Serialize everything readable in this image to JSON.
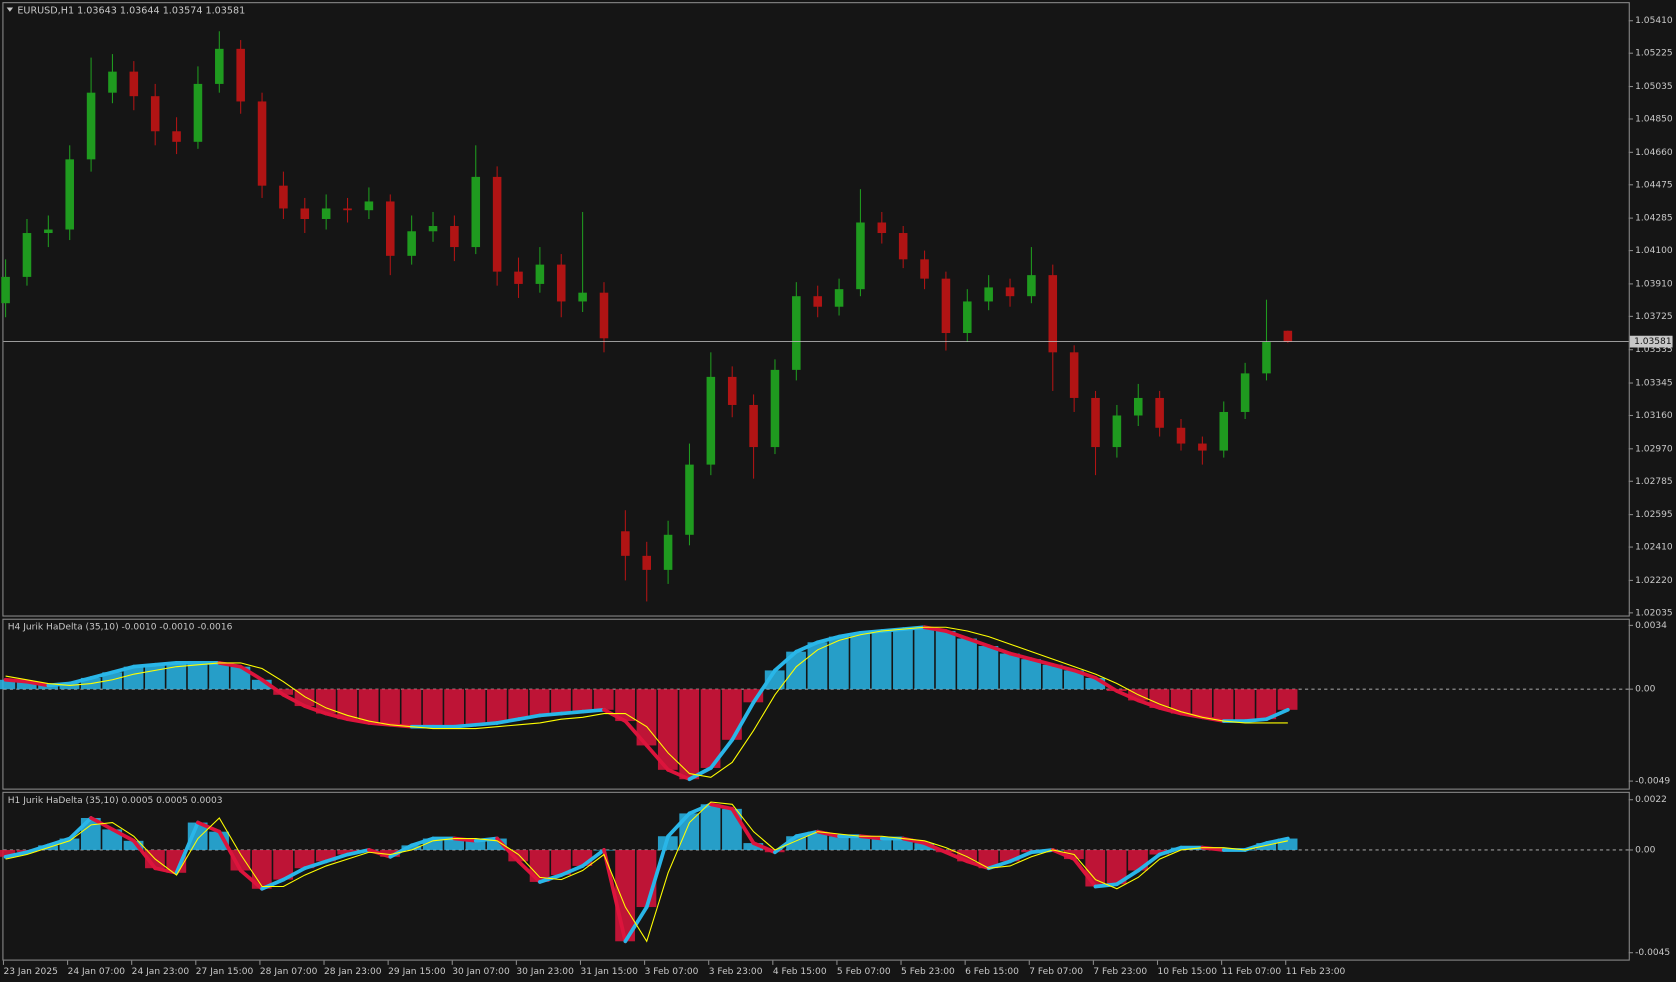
{
  "chart_data": [
    {
      "type": "candlestick",
      "title": "EURUSD,H1  1.03643 1.03644 1.03574 1.03581",
      "up_color": "#1f9a1f",
      "down_color": "#b01414",
      "grid": false,
      "open": [
        1.038,
        1.0395,
        1.042,
        1.0422,
        1.0462,
        1.05,
        1.0512,
        1.0498,
        1.0478,
        1.0472,
        1.0505,
        1.0525,
        1.0495,
        1.0447,
        1.0434,
        1.0428,
        1.0434,
        1.0433,
        1.0438,
        1.0407,
        1.0421,
        1.0424,
        1.0412,
        1.0452,
        1.0398,
        1.0391,
        1.0402,
        1.0381,
        1.0386,
        1.025,
        1.0236,
        1.0228,
        1.0248,
        1.0288,
        1.0338,
        1.0322,
        1.0298,
        1.0342,
        1.0384,
        1.0378,
        1.0388,
        1.0426,
        1.042,
        1.0405,
        1.0394,
        1.0363,
        1.0381,
        1.0389,
        1.0384,
        1.0396,
        1.0352,
        1.0326,
        1.0298,
        1.0316,
        1.0326,
        1.0309,
        1.03,
        1.0296,
        1.0318,
        1.034,
        1.03643
      ],
      "high": [
        1.0405,
        1.0428,
        1.043,
        1.047,
        1.052,
        1.0522,
        1.0518,
        1.0505,
        1.0486,
        1.0515,
        1.0535,
        1.053,
        1.05,
        1.0455,
        1.044,
        1.0442,
        1.044,
        1.0446,
        1.0442,
        1.043,
        1.0432,
        1.043,
        1.047,
        1.0458,
        1.0406,
        1.0412,
        1.0408,
        1.0432,
        1.0392,
        1.0262,
        1.0244,
        1.0256,
        1.03,
        1.0352,
        1.0344,
        1.0328,
        1.0348,
        1.0392,
        1.039,
        1.0394,
        1.0445,
        1.0432,
        1.0424,
        1.041,
        1.0398,
        1.0388,
        1.0396,
        1.0394,
        1.0412,
        1.0402,
        1.0356,
        1.033,
        1.0322,
        1.0334,
        1.033,
        1.0314,
        1.0304,
        1.0324,
        1.0346,
        1.0382,
        1.03644
      ],
      "low": [
        1.0372,
        1.039,
        1.0412,
        1.0416,
        1.0455,
        1.0494,
        1.049,
        1.047,
        1.0465,
        1.0468,
        1.05,
        1.0488,
        1.044,
        1.0428,
        1.042,
        1.0422,
        1.0426,
        1.0428,
        1.0396,
        1.0402,
        1.0415,
        1.0404,
        1.0408,
        1.039,
        1.0383,
        1.0386,
        1.0372,
        1.0375,
        1.0352,
        1.0222,
        1.021,
        1.022,
        1.0242,
        1.0282,
        1.0315,
        1.028,
        1.0294,
        1.0336,
        1.0372,
        1.0373,
        1.0384,
        1.0414,
        1.04,
        1.0388,
        1.0353,
        1.0358,
        1.0376,
        1.0378,
        1.038,
        1.033,
        1.0318,
        1.0282,
        1.0292,
        1.031,
        1.0304,
        1.0296,
        1.0288,
        1.0292,
        1.0314,
        1.0336,
        1.03574
      ],
      "close": [
        1.0395,
        1.042,
        1.0422,
        1.0462,
        1.05,
        1.0512,
        1.0498,
        1.0478,
        1.0472,
        1.0505,
        1.0525,
        1.0495,
        1.0447,
        1.0434,
        1.0428,
        1.0434,
        1.0433,
        1.0438,
        1.0407,
        1.0421,
        1.0424,
        1.0412,
        1.0452,
        1.0398,
        1.0391,
        1.0402,
        1.0381,
        1.0386,
        1.036,
        1.0236,
        1.0228,
        1.0248,
        1.0288,
        1.0338,
        1.0322,
        1.0298,
        1.0342,
        1.0384,
        1.0378,
        1.0388,
        1.0426,
        1.042,
        1.0405,
        1.0394,
        1.0363,
        1.0381,
        1.0389,
        1.0384,
        1.0396,
        1.0352,
        1.0326,
        1.0298,
        1.0316,
        1.0326,
        1.0309,
        1.03,
        1.0296,
        1.0318,
        1.034,
        1.0358,
        1.03581
      ],
      "price_line": 1.03581,
      "price_line_color": "#c8c8c8",
      "ylim": [
        1.0202,
        1.0551
      ],
      "yticks": [
        {
          "value": 1.0541,
          "label": "1.05410"
        },
        1.05225,
        1.05035,
        {
          "value": 1.0485,
          "label": "1.04850"
        },
        {
          "value": 1.0466,
          "label": "1.04660"
        },
        1.04475,
        1.04285,
        {
          "value": 1.041,
          "label": "1.04100"
        },
        {
          "value": 1.0391,
          "label": "1.03910"
        },
        1.03725,
        1.03535,
        1.03345,
        {
          "value": 1.0316,
          "label": "1.03160"
        },
        {
          "value": 1.0297,
          "label": "1.02970"
        },
        1.02785,
        1.02595,
        {
          "value": 1.0241,
          "label": "1.02410"
        },
        {
          "value": 1.0222,
          "label": "1.02220"
        },
        1.02035
      ]
    },
    {
      "type": "histogram",
      "title": "H4 Jurik HaDelta (35,10) -0.0010 -0.0010 -0.0016",
      "positive_color": "#29b6e8",
      "negative_color": "#dc143c",
      "signal_color": "#ffff00",
      "values": [
        0.0005,
        0.0004,
        0.0002,
        0.0003,
        0.0006,
        0.0009,
        0.0012,
        0.0013,
        0.0014,
        0.0014,
        0.0014,
        0.0012,
        0.0005,
        -0.0003,
        -0.0009,
        -0.0013,
        -0.0016,
        -0.0018,
        -0.0019,
        -0.002,
        -0.002,
        -0.002,
        -0.0019,
        -0.0018,
        -0.0016,
        -0.0014,
        -0.0013,
        -0.0012,
        -0.0011,
        -0.0017,
        -0.003,
        -0.0043,
        -0.0048,
        -0.0042,
        -0.0027,
        -0.0007,
        0.001,
        0.002,
        0.0025,
        0.0028,
        0.003,
        0.0031,
        0.0032,
        0.0033,
        0.0031,
        0.0027,
        0.0023,
        0.0019,
        0.0016,
        0.0013,
        0.001,
        0.0006,
        -0.0001,
        -0.0006,
        -0.001,
        -0.0013,
        -0.0015,
        -0.0017,
        -0.0017,
        -0.0016,
        -0.0011
      ],
      "signal": [
        0.0007,
        0.0005,
        0.0003,
        0.0002,
        0.0003,
        0.0005,
        0.0008,
        0.001,
        0.0012,
        0.0013,
        0.0014,
        0.0014,
        0.0011,
        0.0004,
        -0.0004,
        -0.001,
        -0.0014,
        -0.0017,
        -0.0019,
        -0.002,
        -0.0021,
        -0.0021,
        -0.0021,
        -0.002,
        -0.0019,
        -0.0018,
        -0.0016,
        -0.0015,
        -0.0013,
        -0.0013,
        -0.002,
        -0.0034,
        -0.0045,
        -0.0047,
        -0.0039,
        -0.0022,
        -0.0003,
        0.0012,
        0.0021,
        0.0026,
        0.0029,
        0.0031,
        0.0032,
        0.0033,
        0.0033,
        0.0031,
        0.0028,
        0.0024,
        0.002,
        0.0016,
        0.0012,
        0.0008,
        0.0003,
        -0.0003,
        -0.0008,
        -0.0012,
        -0.0015,
        -0.0017,
        -0.0018,
        -0.0018,
        -0.0018
      ],
      "ylim": [
        -0.0053,
        0.0037
      ],
      "yticks": [
        0.0034,
        {
          "value": 0,
          "label": "0.00"
        },
        -0.0049
      ]
    },
    {
      "type": "histogram",
      "title": "H1 Jurik HaDelta (35,10) 0.0005 0.0005 0.0003",
      "positive_color": "#29b6e8",
      "negative_color": "#dc143c",
      "signal_color": "#ffff00",
      "values": [
        -0.0003,
        -0.0001,
        0.0002,
        0.0005,
        0.0014,
        0.0009,
        0.0004,
        -0.0008,
        -0.001,
        0.0012,
        0.0008,
        -0.0009,
        -0.0017,
        -0.0013,
        -0.0008,
        -0.0005,
        -0.0002,
        0.0,
        -0.0003,
        0.0002,
        0.0005,
        0.0005,
        0.0004,
        0.0005,
        -0.0005,
        -0.0014,
        -0.0011,
        -0.0007,
        0.0,
        -0.004,
        -0.0025,
        0.0006,
        0.0016,
        0.002,
        0.0018,
        0.0003,
        -0.0001,
        0.0006,
        0.0008,
        0.0006,
        0.0006,
        0.0005,
        0.0005,
        0.0003,
        -0.0001,
        -0.0005,
        -0.0008,
        -0.0005,
        -0.0001,
        0.0,
        -0.0004,
        -0.0016,
        -0.0015,
        -0.0009,
        -0.0002,
        0.0001,
        0.0001,
        0.0,
        0.0,
        0.0003,
        0.0005
      ],
      "signal": [
        -0.0004,
        -0.0002,
        0.0001,
        0.0004,
        0.0011,
        0.0012,
        0.0006,
        -0.0004,
        -0.0011,
        0.0005,
        0.0014,
        -0.0002,
        -0.0016,
        -0.0016,
        -0.0011,
        -0.0007,
        -0.0004,
        -0.0001,
        -0.0002,
        0.0,
        0.0004,
        0.0005,
        0.0005,
        0.0004,
        -0.0002,
        -0.0012,
        -0.0013,
        -0.0009,
        -0.0002,
        -0.0025,
        -0.004,
        -0.001,
        0.0012,
        0.0021,
        0.002,
        0.0008,
        0.0,
        0.0004,
        0.0008,
        0.0007,
        0.0006,
        0.0006,
        0.0005,
        0.0004,
        0.0001,
        -0.0003,
        -0.0008,
        -0.0007,
        -0.0003,
        0.0,
        -0.0002,
        -0.0013,
        -0.0017,
        -0.0012,
        -0.0004,
        0.0,
        0.0001,
        0.0001,
        0.0,
        0.0002,
        0.0004
      ],
      "ylim": [
        -0.0048,
        0.0025
      ],
      "yticks": [
        0.0022,
        {
          "value": 0,
          "label": "0.00"
        },
        -0.0045
      ]
    }
  ],
  "time_labels": [
    "23 Jan 2025",
    "24 Jan 07:00",
    "24 Jan 23:00",
    "27 Jan 15:00",
    "28 Jan 07:00",
    "28 Jan 23:00",
    "29 Jan 15:00",
    "30 Jan 07:00",
    "30 Jan 23:00",
    "31 Jan 15:00",
    "3 Feb 07:00",
    "3 Feb 23:00",
    "4 Feb 15:00",
    "5 Feb 07:00",
    "5 Feb 23:00",
    "6 Feb 15:00",
    "7 Feb 07:00",
    "7 Feb 23:00",
    "10 Feb 15:00",
    "11 Feb 07:00",
    "11 Feb 23:00"
  ]
}
